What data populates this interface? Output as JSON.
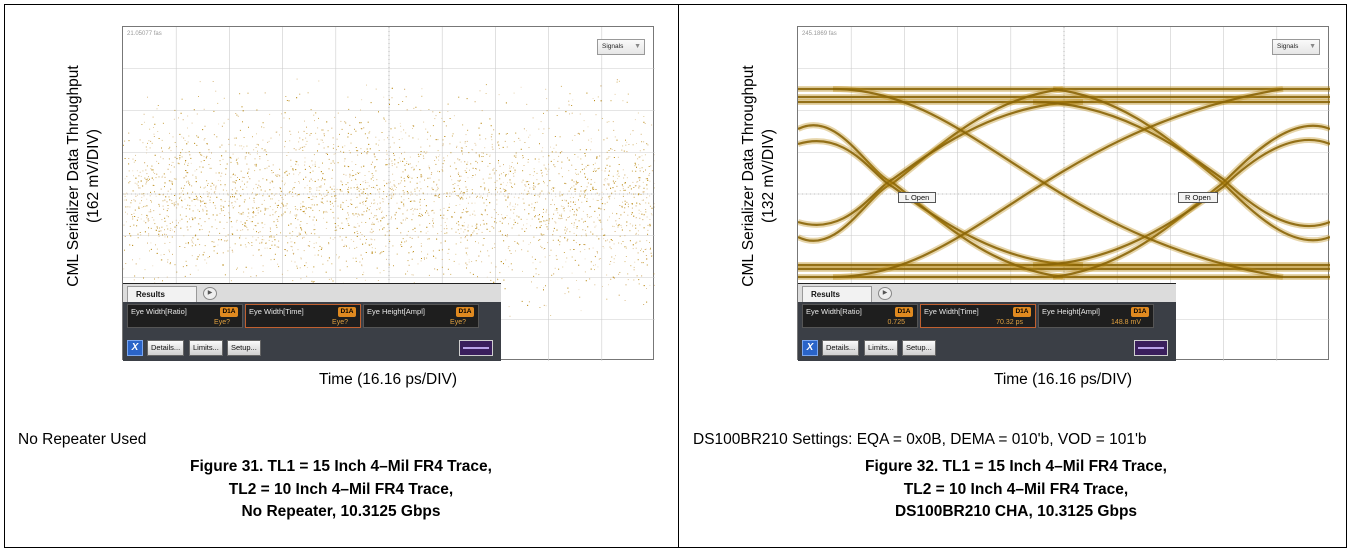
{
  "chart_data": [
    {
      "type": "eye-diagram",
      "ylabel": "CML Serializer Data Throughput",
      "ylabel_units": "(162 mV/DIV)",
      "xlabel": "Time (16.16 ps/DIV)",
      "marker_readout": "21.05077 fas",
      "signals_label": "Signals",
      "eye_open": false,
      "results": {
        "tab_label": "Results",
        "measurements": [
          {
            "name": "Eye Width[Ratio]",
            "badge": "D1A",
            "value": "Eye?"
          },
          {
            "name": "Eye Width[Time]",
            "badge": "D1A",
            "value": "Eye?"
          },
          {
            "name": "Eye Height[Ampl]",
            "badge": "D1A",
            "value": "Eye?"
          }
        ],
        "buttons": {
          "details": "Details...",
          "limits": "Limits...",
          "setup": "Setup..."
        }
      },
      "note": "No Repeater Used",
      "caption": [
        "Figure 31. TL1 = 15 Inch 4–Mil FR4 Trace,",
        "TL2 = 10 Inch 4–Mil FR4 Trace,",
        "No Repeater, 10.3125 Gbps"
      ]
    },
    {
      "type": "eye-diagram",
      "ylabel": "CML Serializer Data Throughput",
      "ylabel_units": "(132 mV/DIV)",
      "xlabel": "Time (16.16 ps/DIV)",
      "marker_readout": "245.1869 fas",
      "signals_label": "Signals",
      "eye_open": true,
      "annotations": {
        "left": "L Open",
        "right": "R Open"
      },
      "results": {
        "tab_label": "Results",
        "measurements": [
          {
            "name": "Eye Width[Ratio]",
            "badge": "D1A",
            "value": "0.725"
          },
          {
            "name": "Eye Width[Time]",
            "badge": "D1A",
            "value": "70.32 ps"
          },
          {
            "name": "Eye Height[Ampl]",
            "badge": "D1A",
            "value": "148.8 mV"
          }
        ],
        "buttons": {
          "details": "Details...",
          "limits": "Limits...",
          "setup": "Setup..."
        }
      },
      "note": "DS100BR210 Settings: EQA = 0x0B, DEMA = 010'b, VOD = 101'b",
      "caption": [
        "Figure 32. TL1 = 15 Inch 4–Mil FR4 Trace,",
        "TL2 = 10 Inch 4–Mil FR4 Trace,",
        "DS100BR210 CHA, 10.3125 Gbps"
      ]
    }
  ],
  "colors": {
    "trace": "#b8860b",
    "trace_light": "#d4b070",
    "grid": "#cccccc",
    "results_panel": "#3b3f46"
  }
}
